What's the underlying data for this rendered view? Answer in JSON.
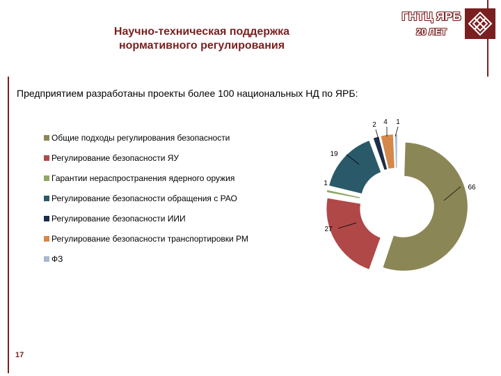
{
  "header": {
    "title_line1": "Научно-техническая поддержка",
    "title_line2": "нормативного регулирования"
  },
  "logo": {
    "name": "ГНТЦ ЯРБ",
    "years": "20 ЛЕТ"
  },
  "subtitle": "Предприятием разработаны проекты более 100 национальных НД по ЯРБ:",
  "page_number": "17",
  "chart_data": {
    "type": "pie",
    "hole": "donut",
    "categories": [
      "Общие подходы регулирования безопасности",
      "Регулирование безопасности ЯУ",
      "Гарантии нераспространения ядерного оружия",
      "Регулирование безопасности обращения с РАО",
      "Регулирование безопасности ИИИ",
      "Регулирование безопасности транспортировки РМ",
      "ФЗ"
    ],
    "values": [
      66,
      27,
      1,
      19,
      2,
      4,
      1
    ],
    "colors": [
      "#8b8656",
      "#b04848",
      "#8fa865",
      "#2a5a6a",
      "#1c2e48",
      "#d4884a",
      "#a8b8d0"
    ],
    "data_labels": [
      "66",
      "27",
      "1",
      "19",
      "2",
      "4",
      "1"
    ],
    "legend_position": "left",
    "title": ""
  }
}
